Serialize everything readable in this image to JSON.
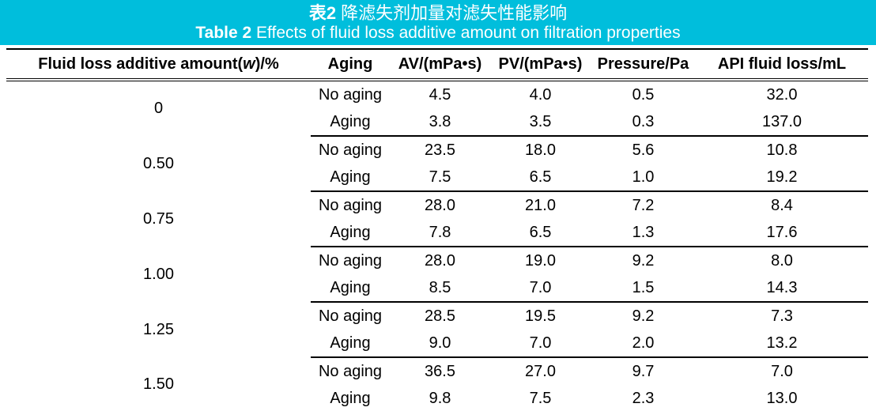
{
  "colors": {
    "band_background": "#00BEDC",
    "band_text": "#FFFFFF",
    "table_text": "#000000",
    "rule_color": "#000000"
  },
  "caption": {
    "zh_prefix": "表2",
    "zh_rest": " 降滤失剂加量对滤失性能影响",
    "en_prefix": "Table 2",
    "en_rest": " Effects of fluid loss additive amount on filtration properties"
  },
  "chart_data": {
    "type": "table",
    "title_zh": "表2 降滤失剂加量对滤失性能影响",
    "title_en": "Table 2 Effects of fluid loss additive amount on filtration properties",
    "columns": [
      "Fluid loss additive amount(w)/%",
      "Aging",
      "AV/(mPa•s)",
      "PV/(mPa•s)",
      "Pressure/Pa",
      "API fluid loss/mL"
    ],
    "rows": [
      [
        "0",
        "No aging",
        4.5,
        4.0,
        0.5,
        32.0
      ],
      [
        "0",
        "Aging",
        3.8,
        3.5,
        0.3,
        137.0
      ],
      [
        "0.50",
        "No aging",
        23.5,
        18.0,
        5.6,
        10.8
      ],
      [
        "0.50",
        "Aging",
        7.5,
        6.5,
        1.0,
        19.2
      ],
      [
        "0.75",
        "No aging",
        28.0,
        21.0,
        7.2,
        8.4
      ],
      [
        "0.75",
        "Aging",
        7.8,
        6.5,
        1.3,
        17.6
      ],
      [
        "1.00",
        "No aging",
        28.0,
        19.0,
        9.2,
        8.0
      ],
      [
        "1.00",
        "Aging",
        8.5,
        7.0,
        1.5,
        14.3
      ],
      [
        "1.25",
        "No aging",
        28.5,
        19.5,
        9.2,
        7.3
      ],
      [
        "1.25",
        "Aging",
        9.0,
        7.0,
        2.0,
        13.2
      ],
      [
        "1.50",
        "No aging",
        36.5,
        27.0,
        9.7,
        7.0
      ],
      [
        "1.50",
        "Aging",
        9.8,
        7.5,
        2.3,
        13.0
      ]
    ]
  },
  "header": {
    "amount_pre": "Fluid loss additive amount(",
    "amount_w": "w",
    "amount_post": ")/%",
    "aging": "Aging",
    "av": "AV/(mPa•s)",
    "pv": "PV/(mPa•s)",
    "pressure": "Pressure/Pa",
    "api": "API fluid loss/mL"
  },
  "groups": [
    {
      "amount": "0",
      "rows": [
        {
          "aging": "No aging",
          "av": "4.5",
          "pv": "4.0",
          "pressure": "0.5",
          "api": "32.0"
        },
        {
          "aging": "Aging",
          "av": "3.8",
          "pv": "3.5",
          "pressure": "0.3",
          "api": "137.0"
        }
      ]
    },
    {
      "amount": "0.50",
      "rows": [
        {
          "aging": "No aging",
          "av": "23.5",
          "pv": "18.0",
          "pressure": "5.6",
          "api": "10.8"
        },
        {
          "aging": "Aging",
          "av": "7.5",
          "pv": "6.5",
          "pressure": "1.0",
          "api": "19.2"
        }
      ]
    },
    {
      "amount": "0.75",
      "rows": [
        {
          "aging": "No aging",
          "av": "28.0",
          "pv": "21.0",
          "pressure": "7.2",
          "api": "8.4"
        },
        {
          "aging": "Aging",
          "av": "7.8",
          "pv": "6.5",
          "pressure": "1.3",
          "api": "17.6"
        }
      ]
    },
    {
      "amount": "1.00",
      "rows": [
        {
          "aging": "No aging",
          "av": "28.0",
          "pv": "19.0",
          "pressure": "9.2",
          "api": "8.0"
        },
        {
          "aging": "Aging",
          "av": "8.5",
          "pv": "7.0",
          "pressure": "1.5",
          "api": "14.3"
        }
      ]
    },
    {
      "amount": "1.25",
      "rows": [
        {
          "aging": "No aging",
          "av": "28.5",
          "pv": "19.5",
          "pressure": "9.2",
          "api": "7.3"
        },
        {
          "aging": "Aging",
          "av": "9.0",
          "pv": "7.0",
          "pressure": "2.0",
          "api": "13.2"
        }
      ]
    },
    {
      "amount": "1.50",
      "rows": [
        {
          "aging": "No aging",
          "av": "36.5",
          "pv": "27.0",
          "pressure": "9.7",
          "api": "7.0"
        },
        {
          "aging": "Aging",
          "av": "9.8",
          "pv": "7.5",
          "pressure": "2.3",
          "api": "13.0"
        }
      ]
    }
  ]
}
